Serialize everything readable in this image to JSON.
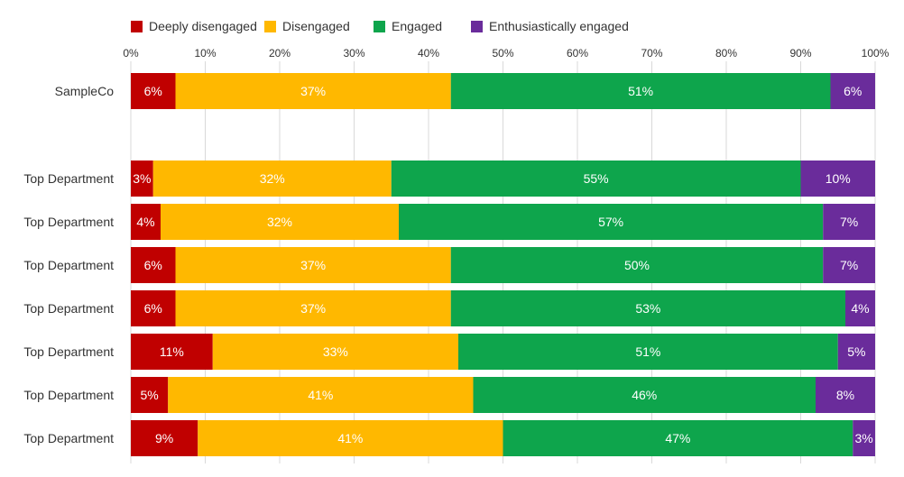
{
  "chart_data": {
    "type": "bar",
    "orientation": "horizontal",
    "stacked": true,
    "xlim": [
      0,
      100
    ],
    "x_ticks": [
      "0%",
      "10%",
      "20%",
      "30%",
      "40%",
      "50%",
      "60%",
      "70%",
      "80%",
      "90%",
      "100%"
    ],
    "grid": true,
    "legend_position": "top-left",
    "series": [
      {
        "name": "Deeply disengaged",
        "color": "#c00000"
      },
      {
        "name": "Disengaged",
        "color": "#ffb800"
      },
      {
        "name": "Engaged",
        "color": "#0ea54c"
      },
      {
        "name": "Enthusiastically engaged",
        "color": "#6a2c9b"
      }
    ],
    "rows": [
      {
        "label": "SampleCo",
        "values": [
          6,
          37,
          51,
          6
        ],
        "labels": [
          "6%",
          "37%",
          "51%",
          "6%"
        ]
      },
      {
        "label": "Top Department",
        "values": [
          3,
          32,
          55,
          10
        ],
        "labels": [
          "3%",
          "32%",
          "55%",
          "10%"
        ]
      },
      {
        "label": "Top Department",
        "values": [
          4,
          32,
          57,
          7
        ],
        "labels": [
          "4%",
          "32%",
          "57%",
          "7%"
        ]
      },
      {
        "label": "Top Department",
        "values": [
          6,
          37,
          50,
          7
        ],
        "labels": [
          "6%",
          "37%",
          "50%",
          "7%"
        ]
      },
      {
        "label": "Top Department",
        "values": [
          6,
          37,
          53,
          4
        ],
        "labels": [
          "6%",
          "37%",
          "53%",
          "4%"
        ]
      },
      {
        "label": "Top Department",
        "values": [
          11,
          33,
          51,
          5
        ],
        "labels": [
          "11%",
          "33%",
          "51%",
          "5%"
        ]
      },
      {
        "label": "Top Department",
        "values": [
          5,
          41,
          46,
          8
        ],
        "labels": [
          "5%",
          "41%",
          "46%",
          "8%"
        ]
      },
      {
        "label": "Top Department",
        "values": [
          9,
          41,
          47,
          3
        ],
        "labels": [
          "9%",
          "41%",
          "47%",
          "3%"
        ]
      }
    ]
  }
}
